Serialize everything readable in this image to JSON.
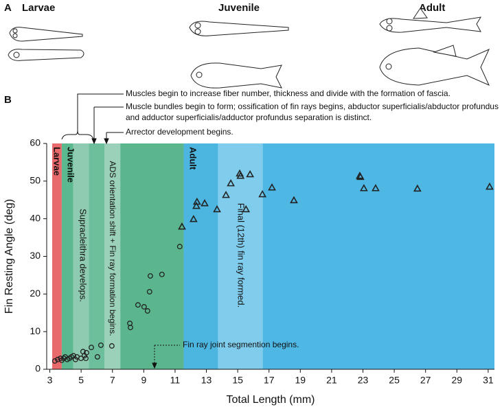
{
  "figure": {
    "panel_a_label": "A",
    "stages": [
      "Larvae",
      "Juvenile",
      "Adult"
    ],
    "panel_b_label": "B"
  },
  "chart_data": {
    "type": "scatter",
    "x_label": "Total Length (mm)",
    "y_label": "Fin Resting Angle (deg)",
    "xlim": [
      2.8,
      31.4
    ],
    "ylim": [
      0,
      60
    ],
    "xticks": [
      3,
      5,
      7,
      9,
      11,
      13,
      15,
      17,
      19,
      21,
      23,
      25,
      27,
      29,
      31
    ],
    "yticks": [
      0,
      10,
      20,
      30,
      40,
      50,
      60
    ],
    "regions": [
      {
        "x0": 3.15,
        "x1": 3.76,
        "color": "#e96a6c"
      },
      {
        "x0": 3.76,
        "x1": 4.5,
        "color": "#5cb88f"
      },
      {
        "x0": 4.5,
        "x1": 5.5,
        "color": "#8fcbb0"
      },
      {
        "x0": 5.5,
        "x1": 6.5,
        "color": "#6dbe9b"
      },
      {
        "x0": 6.5,
        "x1": 7.5,
        "color": "#9ad1b8"
      },
      {
        "x0": 7.5,
        "x1": 11.55,
        "color": "#5bb68e"
      },
      {
        "x0": 11.55,
        "x1": 13.75,
        "color": "#4cb6e0"
      },
      {
        "x0": 13.75,
        "x1": 16.6,
        "color": "#80ccec"
      },
      {
        "x0": 16.6,
        "x1": 31.4,
        "color": "#4eb7e3"
      }
    ],
    "region_labels": [
      "Larvae",
      "Juvenile",
      "Supracleithra develops.",
      "ADS orientation shift + Fin ray formation begins.",
      "Adult",
      "Final (12th) fin ray formed."
    ],
    "annotations": [
      "Muscles begin to increase fiber number, thickness and divide with the formation of fascia.",
      "Muscle bundles begin to form; ossification of fin rays begins, abductor superficialis/abductor profundus",
      "and adductor superficialis/adductor profundus separation is distinct.",
      "Arrector development begins.",
      "Fin ray joint segmention begins."
    ],
    "series": [
      {
        "marker": "circle",
        "color": "#222222",
        "x": [
          3.32,
          3.5,
          3.68,
          3.76,
          3.89,
          3.98,
          4.11,
          4.25,
          4.38,
          4.51,
          4.64,
          4.73,
          4.99,
          5.12,
          5.21,
          5.3,
          5.34,
          5.65,
          6.04,
          6.26,
          6.96,
          8.11,
          8.15,
          8.63,
          9.02,
          9.24,
          9.37,
          9.42,
          10.16,
          11.3
        ],
        "values": [
          2.2,
          2.6,
          2.9,
          2.4,
          2.9,
          3.3,
          2.6,
          2.9,
          3.3,
          3.6,
          2.6,
          3.3,
          2.9,
          4.7,
          3.6,
          2.9,
          4.4,
          5.8,
          3.3,
          6.4,
          6.2,
          12.2,
          11.1,
          17.1,
          16.6,
          15.5,
          20.6,
          24.8,
          25.2,
          32.6
        ]
      },
      {
        "marker": "triangle",
        "color": "#222222",
        "x": [
          11.44,
          12.18,
          12.36,
          12.4,
          12.89,
          13.68,
          14.25,
          14.56,
          15.13,
          15.18,
          15.53,
          15.79,
          16.58,
          17.19,
          18.59,
          22.8,
          22.84,
          23.06,
          23.81,
          26.48,
          31.09
        ],
        "values": [
          37.9,
          39.9,
          43.4,
          44.5,
          44.1,
          42.5,
          46.3,
          49.4,
          52,
          51.4,
          42.5,
          51.8,
          46.5,
          48.3,
          44.9,
          51.4,
          51.1,
          48.1,
          48.1,
          48,
          48.5
        ]
      }
    ]
  }
}
